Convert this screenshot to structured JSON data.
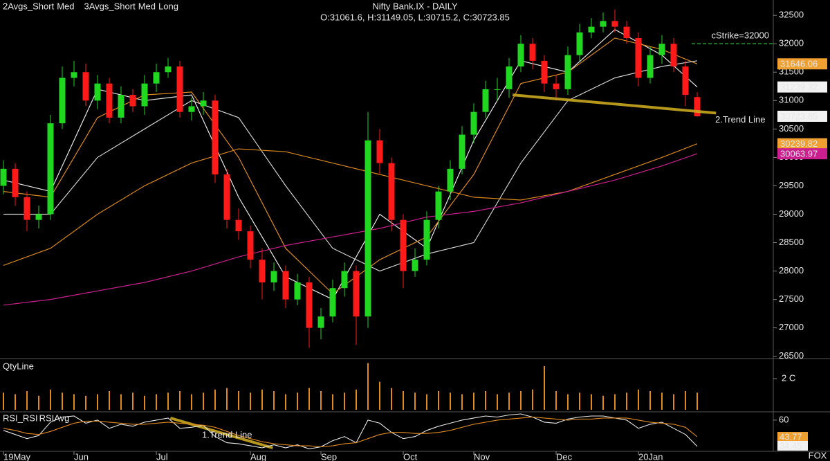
{
  "chart_data": [
    {
      "type": "candlestick",
      "title": "Nifty Bank.IX - DAILY",
      "subtitle": "O:31061.6, H:31149.05, L:30715.2, C:30723.85",
      "categories": [
        "19May",
        null,
        null,
        null,
        null,
        null,
        "Jun",
        null,
        null,
        null,
        null,
        null,
        null,
        "Jul",
        null,
        null,
        null,
        null,
        null,
        null,
        null,
        "Aug",
        null,
        null,
        null,
        null,
        null,
        "Sep",
        null,
        null,
        null,
        null,
        null,
        null,
        "Oct",
        null,
        null,
        null,
        null,
        null,
        "Nov",
        null,
        null,
        null,
        null,
        null,
        null,
        "Dec",
        null,
        null,
        null,
        null,
        null,
        null,
        "20Jan",
        null,
        null,
        null,
        null,
        null
      ],
      "open": [
        29500,
        29800,
        29300,
        28900,
        29000,
        30600,
        31400,
        31500,
        31000,
        31300,
        30700,
        31100,
        30900,
        31300,
        31500,
        31600,
        30800,
        30900,
        31000,
        29700,
        28900,
        28700,
        28200,
        27800,
        28000,
        27500,
        27800,
        27000,
        27200,
        27700,
        28000,
        27200,
        30300,
        29900,
        28900,
        28000,
        28200,
        28900,
        29400,
        29800,
        30400,
        30800,
        31200,
        31200,
        31600,
        32000,
        31700,
        31300,
        31200,
        31800,
        32200,
        32300,
        32400,
        32300,
        32100,
        31400,
        31800,
        32000,
        31600,
        31061.6
      ],
      "high": [
        29950,
        29900,
        29400,
        29150,
        30750,
        31600,
        31700,
        31650,
        31450,
        31400,
        31250,
        31200,
        31450,
        31650,
        31750,
        31700,
        31050,
        31150,
        31100,
        29800,
        29100,
        28800,
        28400,
        28150,
        28100,
        27950,
        27900,
        27350,
        27850,
        28150,
        28100,
        30800,
        30500,
        30000,
        29000,
        28400,
        29050,
        29500,
        29950,
        30550,
        30950,
        31350,
        31400,
        31750,
        32150,
        32100,
        31800,
        31450,
        31950,
        32350,
        32450,
        32550,
        32600,
        32400,
        32200,
        31950,
        32150,
        32100,
        31700,
        31149.05
      ],
      "low": [
        29350,
        29150,
        28700,
        28750,
        28900,
        30500,
        31250,
        30900,
        30850,
        30600,
        30600,
        30800,
        30750,
        31150,
        31400,
        30700,
        30650,
        30750,
        29550,
        28750,
        28550,
        28050,
        27500,
        27650,
        27350,
        27400,
        26650,
        26800,
        27100,
        27550,
        26700,
        27000,
        29700,
        28700,
        27700,
        27900,
        28100,
        28750,
        29250,
        29700,
        30250,
        30700,
        31000,
        31050,
        31500,
        31550,
        31150,
        31000,
        31100,
        31700,
        32100,
        32200,
        32200,
        32000,
        31250,
        31300,
        31650,
        31500,
        30900,
        30715.2
      ],
      "close": [
        29800,
        29300,
        28900,
        29000,
        30600,
        31400,
        31500,
        31000,
        31300,
        30700,
        31100,
        30900,
        31300,
        31500,
        31600,
        30800,
        30900,
        31000,
        29700,
        28900,
        28700,
        28200,
        27800,
        28000,
        27500,
        27800,
        27000,
        27200,
        27700,
        28000,
        27200,
        30300,
        29900,
        28900,
        28000,
        28200,
        28900,
        29400,
        29800,
        30400,
        30800,
        31200,
        31200,
        31600,
        32000,
        31700,
        31300,
        31200,
        31800,
        32200,
        32300,
        32400,
        32300,
        32100,
        31400,
        31800,
        32000,
        31600,
        31100,
        30723.85
      ],
      "color_up": "#1fd81f",
      "color_down": "#ff1a1a",
      "series": [
        {
          "name": "2Avgs_Short",
          "color": "#e8e8e8",
          "x": [
            0,
            4,
            8,
            12,
            16,
            20,
            24,
            28,
            32,
            36,
            40,
            44,
            48,
            52,
            56,
            59
          ],
          "values": [
            29600,
            29400,
            31200,
            31000,
            31100,
            29300,
            27900,
            27500,
            29000,
            28400,
            30300,
            31700,
            31500,
            32250,
            31800,
            31239.32
          ]
        },
        {
          "name": "Med",
          "color": "#e08a1e",
          "x": [
            0,
            4,
            8,
            12,
            16,
            20,
            24,
            28,
            32,
            36,
            40,
            44,
            48,
            52,
            56,
            59
          ],
          "values": [
            29400,
            29300,
            30700,
            31100,
            31150,
            30000,
            28400,
            27600,
            28200,
            28600,
            29700,
            31300,
            31500,
            32100,
            31900,
            31646.06
          ]
        },
        {
          "name": "3Avgs_Short",
          "color": "#cfcfcf",
          "x": [
            0,
            4,
            8,
            12,
            16,
            20,
            24,
            28,
            32,
            36,
            40,
            44,
            48,
            52,
            56,
            59
          ],
          "values": [
            29000,
            29000,
            30000,
            30500,
            31000,
            30700,
            29500,
            28400,
            28000,
            28300,
            28500,
            29900,
            31000,
            31400,
            31600,
            31700
          ]
        },
        {
          "name": "Med",
          "color": "#d9861a",
          "x": [
            0,
            4,
            8,
            12,
            16,
            20,
            24,
            28,
            32,
            36,
            40,
            44,
            48,
            52,
            56,
            59
          ],
          "values": [
            28100,
            28400,
            29000,
            29500,
            29900,
            30150,
            30100,
            29900,
            29700,
            29500,
            29300,
            29250,
            29400,
            29700,
            30000,
            30239.82
          ]
        },
        {
          "name": "Long",
          "color": "#cc1f8f",
          "x": [
            0,
            4,
            8,
            12,
            16,
            20,
            24,
            28,
            32,
            36,
            40,
            44,
            48,
            52,
            56,
            59
          ],
          "values": [
            27400,
            27500,
            27650,
            27800,
            28000,
            28250,
            28450,
            28600,
            28750,
            28950,
            29050,
            29200,
            29400,
            29600,
            29850,
            30063.97
          ]
        }
      ],
      "ylim": [
        26460,
        32770
      ],
      "yticks": [
        26500,
        27000,
        27500,
        28000,
        28500,
        29000,
        29500,
        30000,
        30500,
        31000,
        31500,
        32000,
        32500
      ],
      "strike": {
        "label": "cStrike=32000",
        "value": 32000,
        "color": "#2e9e3a"
      },
      "trendline": {
        "label": "2.Trend Line",
        "x": [
          43.3,
          60.6
        ],
        "values": [
          31100,
          30780
        ],
        "color": "#c8a81e"
      }
    },
    {
      "type": "bar",
      "title": "QtyLine",
      "color": "#e08a1e",
      "values": [
        1.1,
        1.0,
        1.2,
        0.9,
        1.3,
        1.1,
        1.0,
        0.9,
        1.0,
        1.2,
        1.0,
        1.1,
        0.9,
        1.0,
        1.1,
        1.2,
        1.0,
        1.1,
        1.3,
        1.4,
        1.2,
        1.1,
        1.3,
        1.2,
        1.0,
        1.1,
        1.4,
        1.2,
        1.0,
        1.1,
        1.3,
        3.0,
        1.8,
        1.4,
        1.2,
        1.1,
        1.0,
        1.2,
        1.1,
        1.0,
        1.1,
        1.2,
        1.0,
        1.1,
        1.2,
        1.3,
        2.8,
        1.2,
        1.0,
        1.1,
        1.0,
        0.9,
        1.0,
        1.1,
        1.3,
        1.2,
        1.1,
        1.0,
        1.2,
        1.1
      ],
      "ylim": [
        0,
        3.2
      ],
      "yticks": [
        {
          "value": 2,
          "label": "2 C"
        }
      ]
    },
    {
      "type": "line",
      "series": [
        {
          "name": "RSI_RSI",
          "color": "#e8e8e8",
          "values": [
            50,
            46,
            42,
            45,
            58,
            63,
            64,
            57,
            60,
            52,
            56,
            54,
            58,
            60,
            62,
            52,
            53,
            55,
            44,
            38,
            37,
            35,
            33,
            36,
            33,
            36,
            32,
            34,
            40,
            44,
            38,
            60,
            57,
            48,
            42,
            44,
            50,
            54,
            57,
            60,
            62,
            64,
            63,
            65,
            66,
            63,
            58,
            57,
            61,
            63,
            64,
            64,
            62,
            60,
            52,
            56,
            58,
            52,
            46,
            34.45
          ]
        },
        {
          "name": "RSIAvg",
          "color": "#e08a1e",
          "values": [
            52,
            50,
            47,
            46,
            49,
            53,
            57,
            59,
            59,
            58,
            57,
            56,
            56,
            57,
            58,
            57,
            56,
            55,
            53,
            49,
            45,
            42,
            39,
            37,
            36,
            35,
            35,
            34,
            35,
            37,
            38,
            42,
            46,
            48,
            48,
            47,
            47,
            48,
            50,
            53,
            56,
            58,
            60,
            61,
            62,
            63,
            62,
            61,
            60,
            61,
            61,
            62,
            62,
            62,
            60,
            58,
            57,
            56,
            53,
            43.77
          ]
        }
      ],
      "ylim": [
        31,
        66
      ],
      "yticks": [
        60
      ],
      "trendline": {
        "label": "1.Trend Line",
        "x": [
          14.2,
          22.9
        ],
        "values": [
          62,
          33
        ],
        "color": "#c8a81e"
      }
    }
  ],
  "watermark": "FOX"
}
